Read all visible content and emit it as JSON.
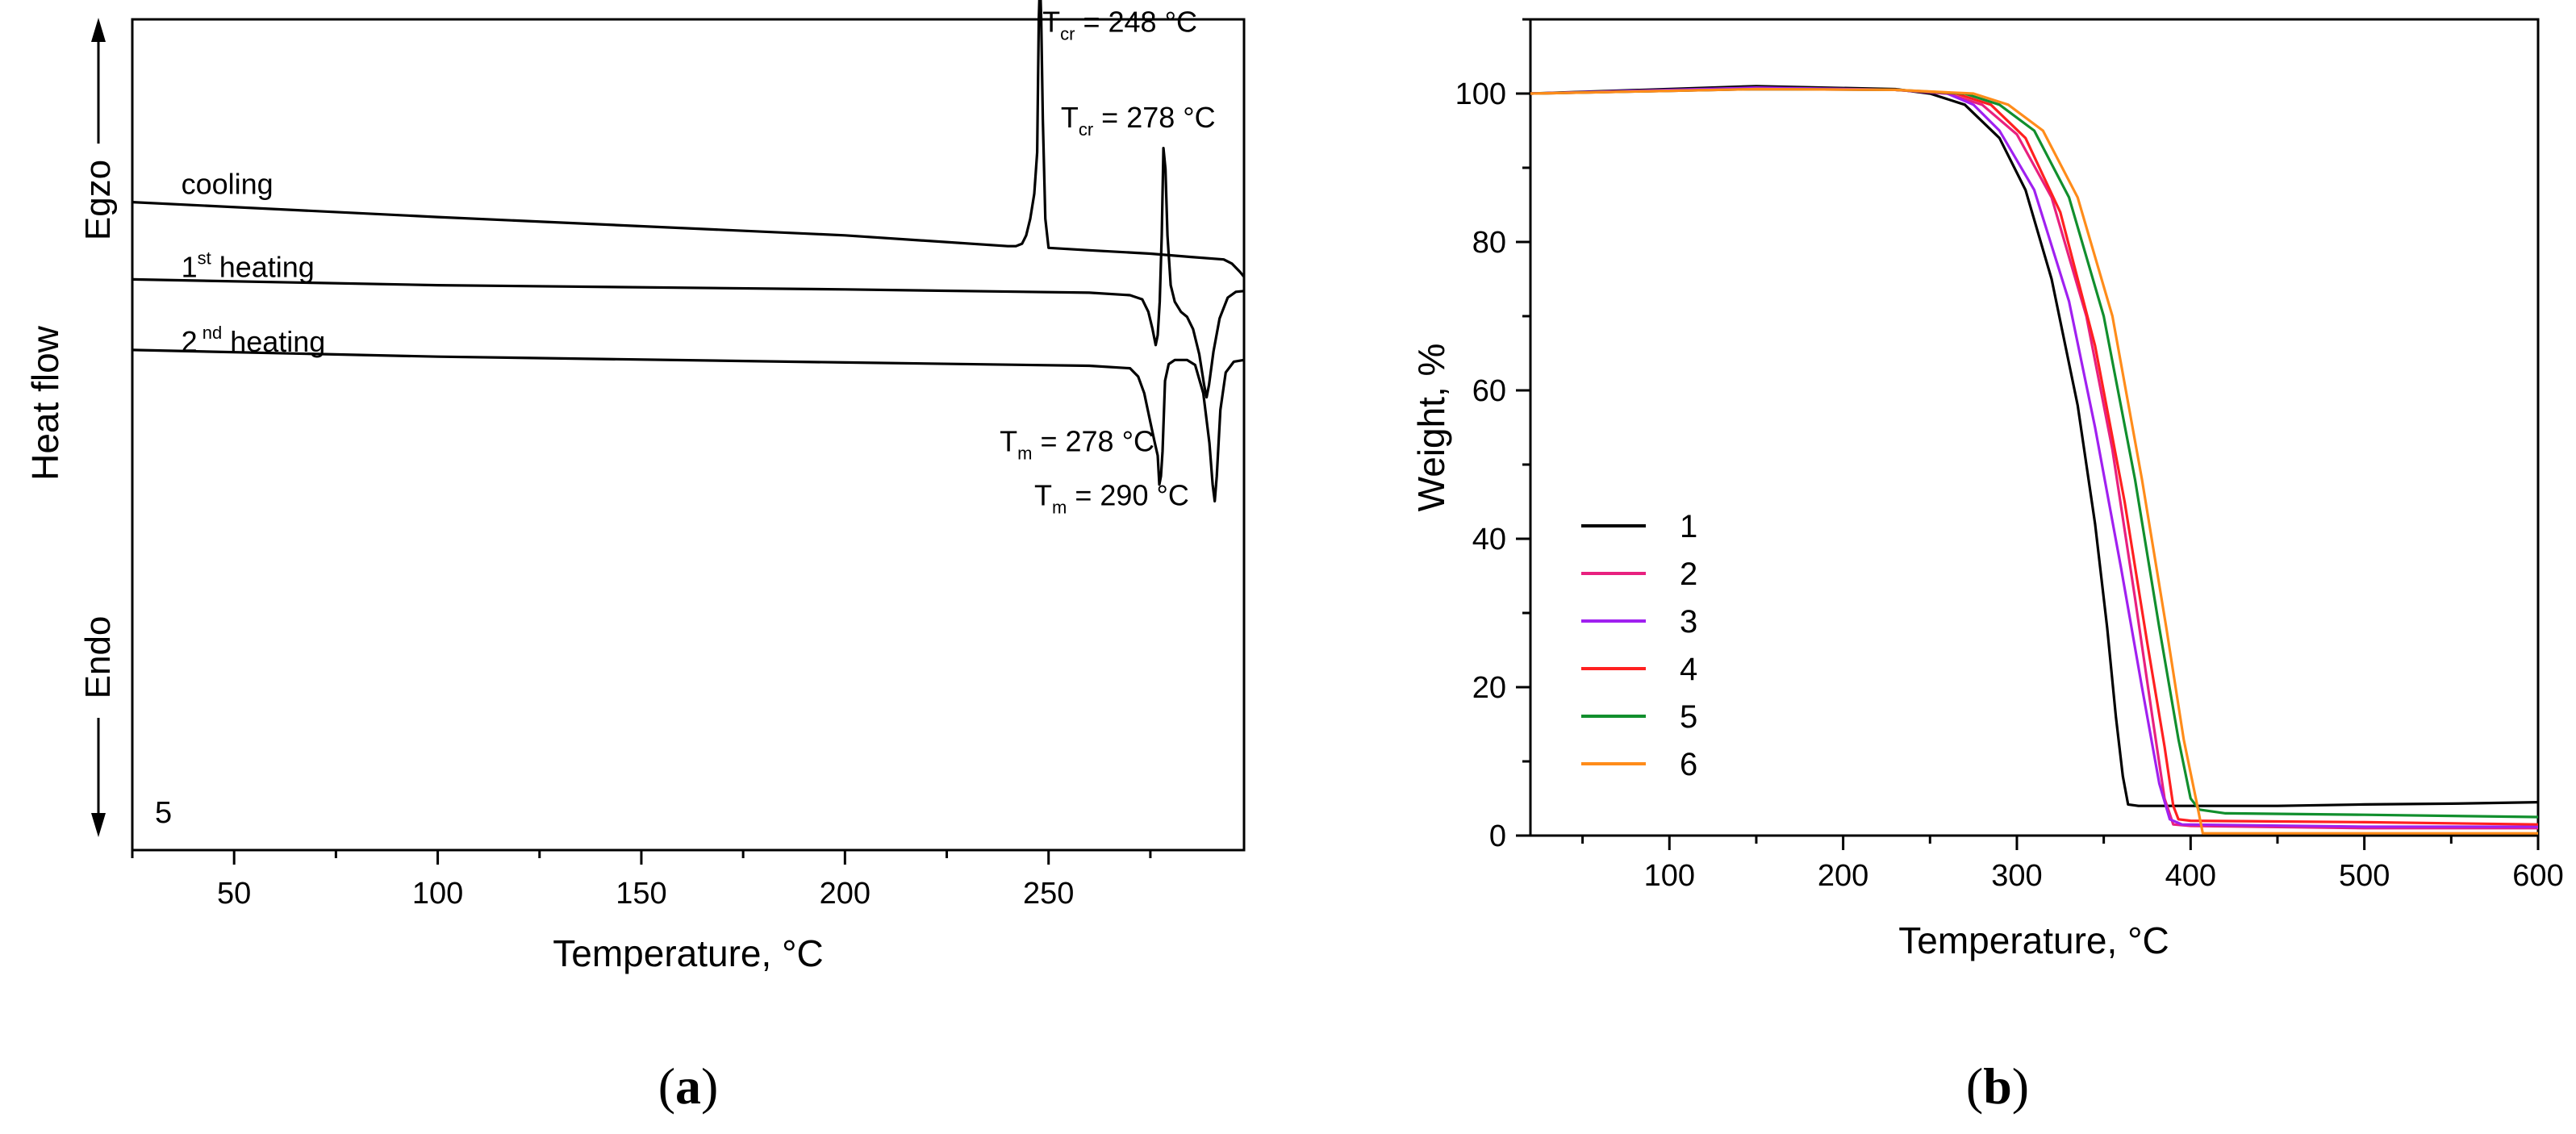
{
  "chart_data": [
    {
      "type": "line",
      "panel_label": "a",
      "xlabel": "Temperature, °C",
      "ylabel": "Heat flow",
      "y_direction_labels": {
        "up": "Egzo",
        "down": "Endo"
      },
      "xlim": [
        25,
        298
      ],
      "x_ticks": [
        50,
        100,
        150,
        200,
        250
      ],
      "sample_label": "5",
      "y_units": "arbitrary",
      "series": [
        {
          "name": "cooling",
          "label_at": [
            37,
            0.79
          ],
          "color": "#000000",
          "points": [
            [
              25,
              0.78
            ],
            [
              100,
              0.762
            ],
            [
              200,
              0.74
            ],
            [
              240,
              0.727
            ],
            [
              242,
              0.727
            ],
            [
              243.5,
              0.73
            ],
            [
              244.5,
              0.74
            ],
            [
              245.5,
              0.76
            ],
            [
              246.5,
              0.79
            ],
            [
              247.2,
              0.84
            ],
            [
              247.6,
              1.0
            ],
            [
              247.9,
              1.05
            ],
            [
              248.2,
              1.0
            ],
            [
              248.6,
              0.88
            ],
            [
              249.2,
              0.76
            ],
            [
              250,
              0.725
            ],
            [
              260,
              0.722
            ],
            [
              275,
              0.718
            ],
            [
              285,
              0.714
            ],
            [
              293,
              0.711
            ],
            [
              295,
              0.706
            ],
            [
              297,
              0.696
            ],
            [
              298,
              0.69
            ]
          ]
        },
        {
          "name": "1st heating",
          "label_prefix": "1",
          "label_sup": "st",
          "label_suffix": " heating",
          "label_at": [
            37,
            0.69
          ],
          "color": "#000000",
          "points": [
            [
              25,
              0.687
            ],
            [
              100,
              0.68
            ],
            [
              200,
              0.675
            ],
            [
              260,
              0.671
            ],
            [
              270,
              0.668
            ],
            [
              273,
              0.663
            ],
            [
              274.5,
              0.648
            ],
            [
              275.5,
              0.628
            ],
            [
              276.3,
              0.608
            ],
            [
              276.8,
              0.62
            ],
            [
              277.3,
              0.66
            ],
            [
              277.8,
              0.74
            ],
            [
              278.2,
              0.845
            ],
            [
              278.7,
              0.82
            ],
            [
              279.2,
              0.74
            ],
            [
              280,
              0.68
            ],
            [
              281,
              0.66
            ],
            [
              282.5,
              0.648
            ],
            [
              284,
              0.642
            ],
            [
              285.5,
              0.627
            ],
            [
              287,
              0.597
            ],
            [
              288.2,
              0.56
            ],
            [
              288.8,
              0.545
            ],
            [
              289.4,
              0.56
            ],
            [
              290.5,
              0.6
            ],
            [
              292,
              0.64
            ],
            [
              294,
              0.665
            ],
            [
              296,
              0.672
            ],
            [
              298,
              0.673
            ]
          ]
        },
        {
          "name": "2nd heating",
          "label_prefix": "2",
          "label_sup": " nd",
          "label_suffix": " heating",
          "label_at": [
            37,
            0.6
          ],
          "color": "#000000",
          "points": [
            [
              25,
              0.602
            ],
            [
              100,
              0.594
            ],
            [
              200,
              0.587
            ],
            [
              260,
              0.583
            ],
            [
              270,
              0.58
            ],
            [
              272,
              0.57
            ],
            [
              273.5,
              0.55
            ],
            [
              275,
              0.515
            ],
            [
              276,
              0.492
            ],
            [
              276.8,
              0.475
            ],
            [
              277.2,
              0.44
            ],
            [
              277.6,
              0.45
            ],
            [
              278,
              0.48
            ],
            [
              278.6,
              0.565
            ],
            [
              279.5,
              0.585
            ],
            [
              281,
              0.59
            ],
            [
              284,
              0.59
            ],
            [
              286,
              0.584
            ],
            [
              288,
              0.55
            ],
            [
              289.5,
              0.49
            ],
            [
              290.3,
              0.44
            ],
            [
              290.8,
              0.42
            ],
            [
              291.3,
              0.45
            ],
            [
              292.2,
              0.53
            ],
            [
              293.5,
              0.575
            ],
            [
              295.5,
              0.588
            ],
            [
              298,
              0.59
            ]
          ]
        }
      ],
      "annotations": [
        {
          "main": "T",
          "sub": "cr",
          "rest": " = 248 °C",
          "at": [
            248.5,
            0.985
          ]
        },
        {
          "main": "T",
          "sub": "cr",
          "rest": " = 278 °C",
          "at": [
            253,
            0.87
          ]
        },
        {
          "main": "T",
          "sub": "m",
          "rest": " = 278 °C",
          "at": [
            238,
            0.48
          ]
        },
        {
          "main": "T",
          "sub": "m",
          "rest": " = 290 °C",
          "at": [
            246.5,
            0.415
          ]
        }
      ]
    },
    {
      "type": "line",
      "panel_label": "b",
      "xlabel": "Temperature, °C",
      "ylabel": "Weight, %",
      "xlim": [
        20,
        600
      ],
      "ylim": [
        0,
        110
      ],
      "x_ticks": [
        100,
        200,
        300,
        400,
        500,
        600
      ],
      "y_ticks": [
        0,
        20,
        40,
        60,
        80,
        100
      ],
      "legend_position": "lower-left",
      "series": [
        {
          "name": "1",
          "color": "#000000",
          "points": [
            [
              20,
              100
            ],
            [
              150,
              101
            ],
            [
              230,
              100.6
            ],
            [
              250,
              100
            ],
            [
              270,
              98.5
            ],
            [
              290,
              94
            ],
            [
              305,
              87
            ],
            [
              320,
              75
            ],
            [
              335,
              58
            ],
            [
              345,
              42
            ],
            [
              352,
              28
            ],
            [
              357,
              16
            ],
            [
              361,
              8
            ],
            [
              364,
              4.2
            ],
            [
              370,
              4
            ],
            [
              450,
              4
            ],
            [
              500,
              4.2
            ],
            [
              550,
              4.3
            ],
            [
              600,
              4.5
            ]
          ]
        },
        {
          "name": "2",
          "color": "#e8207f",
          "points": [
            [
              20,
              100
            ],
            [
              150,
              100.7
            ],
            [
              230,
              100.5
            ],
            [
              260,
              100
            ],
            [
              280,
              98.5
            ],
            [
              300,
              94.5
            ],
            [
              320,
              86
            ],
            [
              340,
              70
            ],
            [
              355,
              52
            ],
            [
              368,
              32
            ],
            [
              378,
              16
            ],
            [
              385,
              5
            ],
            [
              390,
              1.5
            ],
            [
              400,
              1.3
            ],
            [
              500,
              1
            ],
            [
              600,
              1
            ]
          ]
        },
        {
          "name": "3",
          "color": "#a020f0",
          "points": [
            [
              20,
              100
            ],
            [
              150,
              100.8
            ],
            [
              230,
              100.5
            ],
            [
              260,
              100
            ],
            [
              275,
              98.5
            ],
            [
              290,
              95
            ],
            [
              310,
              87
            ],
            [
              330,
              72
            ],
            [
              345,
              55
            ],
            [
              360,
              36
            ],
            [
              372,
              20
            ],
            [
              382,
              7
            ],
            [
              388,
              2.2
            ],
            [
              395,
              1.5
            ],
            [
              500,
              1.2
            ],
            [
              600,
              1.2
            ]
          ]
        },
        {
          "name": "4",
          "color": "#ff2020",
          "points": [
            [
              20,
              100
            ],
            [
              150,
              100.6
            ],
            [
              230,
              100.5
            ],
            [
              265,
              100
            ],
            [
              285,
              98.5
            ],
            [
              305,
              94
            ],
            [
              325,
              84
            ],
            [
              345,
              66
            ],
            [
              362,
              45
            ],
            [
              375,
              26
            ],
            [
              385,
              12
            ],
            [
              390,
              4
            ],
            [
              393,
              2.2
            ],
            [
              400,
              2
            ],
            [
              500,
              1.8
            ],
            [
              600,
              1.5
            ]
          ]
        },
        {
          "name": "5",
          "color": "#118f2d",
          "points": [
            [
              20,
              100
            ],
            [
              150,
              100.6
            ],
            [
              230,
              100.5
            ],
            [
              270,
              100
            ],
            [
              290,
              98.5
            ],
            [
              310,
              95
            ],
            [
              330,
              86
            ],
            [
              350,
              70
            ],
            [
              368,
              48
            ],
            [
              382,
              28
            ],
            [
              393,
              13
            ],
            [
              400,
              5
            ],
            [
              405,
              3.5
            ],
            [
              420,
              3
            ],
            [
              500,
              2.8
            ],
            [
              600,
              2.5
            ]
          ]
        },
        {
          "name": "6",
          "color": "#ff8c1a",
          "points": [
            [
              20,
              100
            ],
            [
              150,
              100.6
            ],
            [
              230,
              100.5
            ],
            [
              275,
              100
            ],
            [
              295,
              98.5
            ],
            [
              315,
              95
            ],
            [
              335,
              86
            ],
            [
              355,
              70
            ],
            [
              372,
              48
            ],
            [
              386,
              28
            ],
            [
              396,
              13
            ],
            [
              403,
              5
            ],
            [
              407,
              0.3
            ],
            [
              450,
              0.3
            ],
            [
              600,
              0.3
            ]
          ]
        }
      ]
    }
  ]
}
